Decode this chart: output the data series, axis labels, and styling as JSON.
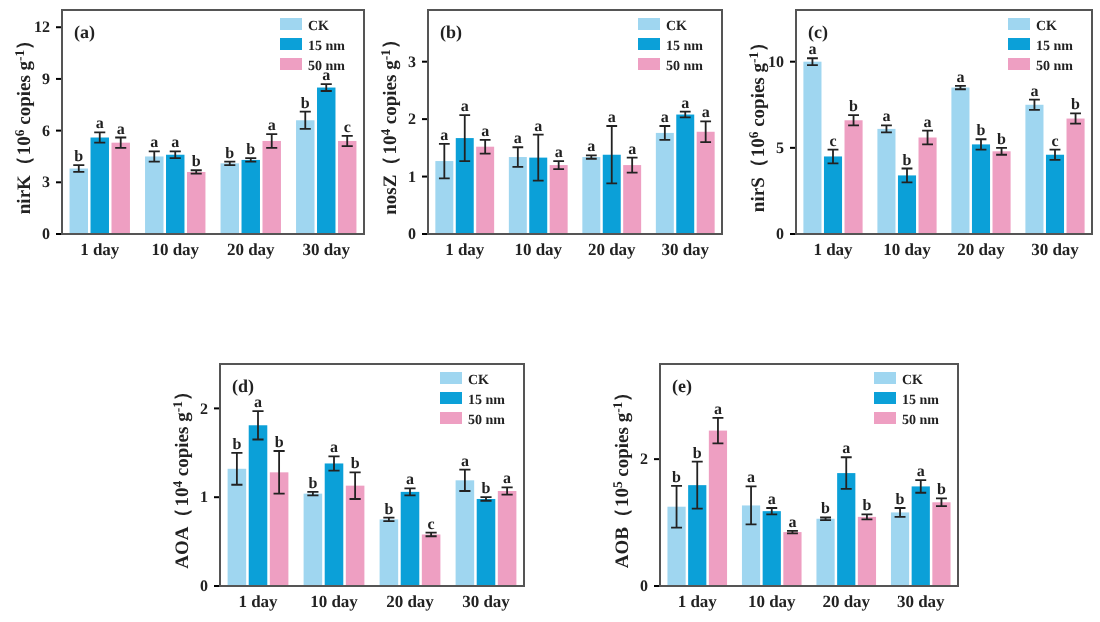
{
  "chart_data": [
    {
      "type": "bar",
      "title": "(a)",
      "ylabel": "nirK（10$^{6}$ copies g$^{-1}$）",
      "categories": [
        "1 day",
        "10 day",
        "20 day",
        "30 day"
      ],
      "ylim": [
        0,
        13
      ],
      "yticks": [
        0,
        3,
        6,
        9,
        12
      ],
      "legend": "top right",
      "series": [
        {
          "name": "CK",
          "color": "#9fd6f0",
          "values": [
            3.8,
            4.5,
            4.1,
            6.6
          ],
          "errors": [
            0.2,
            0.3,
            0.1,
            0.5
          ]
        },
        {
          "name": "15 nm",
          "color": "#0ba0d8",
          "values": [
            5.6,
            4.6,
            4.3,
            8.5
          ],
          "errors": [
            0.3,
            0.2,
            0.1,
            0.2
          ]
        },
        {
          "name": "50 nm",
          "color": "#ee9fc2",
          "values": [
            5.3,
            3.6,
            5.4,
            5.4
          ],
          "errors": [
            0.3,
            0.1,
            0.4,
            0.3
          ]
        }
      ],
      "annotations": [
        "b",
        "a",
        "a",
        "a",
        "a",
        "b",
        "b",
        "b",
        "a",
        "b",
        "a",
        "c"
      ]
    },
    {
      "type": "bar",
      "title": "(b)",
      "ylabel": "nosZ（10$^{4}$ copies g$^{-1}$）",
      "categories": [
        "1 day",
        "10 day",
        "20 day",
        "30 day"
      ],
      "ylim": [
        0,
        3.9
      ],
      "yticks": [
        0,
        1,
        2,
        3
      ],
      "legend": "top right",
      "series": [
        {
          "name": "CK",
          "color": "#9fd6f0",
          "values": [
            1.27,
            1.34,
            1.34,
            1.76
          ],
          "errors": [
            0.3,
            0.17,
            0.03,
            0.12
          ]
        },
        {
          "name": "15 nm",
          "color": "#0ba0d8",
          "values": [
            1.67,
            1.33,
            1.38,
            2.08
          ],
          "errors": [
            0.4,
            0.4,
            0.5,
            0.05
          ]
        },
        {
          "name": "50 nm",
          "color": "#ee9fc2",
          "values": [
            1.52,
            1.2,
            1.2,
            1.78
          ],
          "errors": [
            0.12,
            0.07,
            0.13,
            0.18
          ]
        }
      ],
      "annotations": [
        "a",
        "a",
        "a",
        "a",
        "a",
        "a",
        "a",
        "a",
        "a",
        "a",
        "a",
        "a"
      ]
    },
    {
      "type": "bar",
      "title": "(c)",
      "ylabel": "nirS（10$^{6}$ copies g$^{-1}$）",
      "categories": [
        "1 day",
        "10 day",
        "20 day",
        "30 day"
      ],
      "ylim": [
        0,
        13
      ],
      "yticks": [
        0,
        5,
        10
      ],
      "legend": "top right",
      "series": [
        {
          "name": "CK",
          "color": "#9fd6f0",
          "values": [
            10.0,
            6.1,
            8.5,
            7.5
          ],
          "errors": [
            0.2,
            0.2,
            0.1,
            0.3
          ]
        },
        {
          "name": "15 nm",
          "color": "#0ba0d8",
          "values": [
            4.5,
            3.4,
            5.2,
            4.6
          ],
          "errors": [
            0.4,
            0.4,
            0.3,
            0.3
          ]
        },
        {
          "name": "50 nm",
          "color": "#ee9fc2",
          "values": [
            6.6,
            5.6,
            4.8,
            6.7
          ],
          "errors": [
            0.3,
            0.4,
            0.2,
            0.3
          ]
        }
      ],
      "annotations": [
        "a",
        "c",
        "b",
        "a",
        "b",
        "a",
        "a",
        "b",
        "b",
        "a",
        "c",
        "b"
      ]
    },
    {
      "type": "bar",
      "title": "(d)",
      "ylabel": "AOA（10$^{4}$ copies g$^{-1}$）",
      "categories": [
        "1 day",
        "10 day",
        "20 day",
        "30 day"
      ],
      "ylim": [
        0,
        2.5
      ],
      "yticks": [
        0,
        1,
        2
      ],
      "legend": "top right",
      "series": [
        {
          "name": "CK",
          "color": "#9fd6f0",
          "values": [
            1.32,
            1.04,
            0.75,
            1.19
          ],
          "errors": [
            0.18,
            0.02,
            0.02,
            0.12
          ]
        },
        {
          "name": "15 nm",
          "color": "#0ba0d8",
          "values": [
            1.81,
            1.38,
            1.06,
            0.98
          ],
          "errors": [
            0.16,
            0.08,
            0.04,
            0.02
          ]
        },
        {
          "name": "50 nm",
          "color": "#ee9fc2",
          "values": [
            1.28,
            1.13,
            0.58,
            1.07
          ],
          "errors": [
            0.24,
            0.15,
            0.02,
            0.04
          ]
        }
      ],
      "annotations": [
        "b",
        "a",
        "b",
        "b",
        "a",
        "b",
        "b",
        "a",
        "c",
        "a",
        "b",
        "a"
      ]
    },
    {
      "type": "bar",
      "title": "(e)",
      "ylabel": "AOB（10$^{5}$ copies g$^{-1}$）",
      "categories": [
        "1 day",
        "10 day",
        "20 day",
        "30 day"
      ],
      "ylim": [
        0,
        3.5
      ],
      "yticks": [
        0,
        2
      ],
      "legend": "top right",
      "series": [
        {
          "name": "CK",
          "color": "#9fd6f0",
          "values": [
            1.25,
            1.27,
            1.06,
            1.16
          ],
          "errors": [
            0.33,
            0.3,
            0.02,
            0.07
          ]
        },
        {
          "name": "15 nm",
          "color": "#0ba0d8",
          "values": [
            1.59,
            1.18,
            1.78,
            1.57
          ],
          "errors": [
            0.37,
            0.05,
            0.25,
            0.1
          ]
        },
        {
          "name": "50 nm",
          "color": "#ee9fc2",
          "values": [
            2.45,
            0.85,
            1.09,
            1.32
          ],
          "errors": [
            0.2,
            0.02,
            0.04,
            0.06
          ]
        }
      ],
      "annotations": [
        "b",
        "b",
        "a",
        "a",
        "a",
        "a",
        "b",
        "a",
        "b",
        "b",
        "a",
        "b"
      ]
    }
  ]
}
